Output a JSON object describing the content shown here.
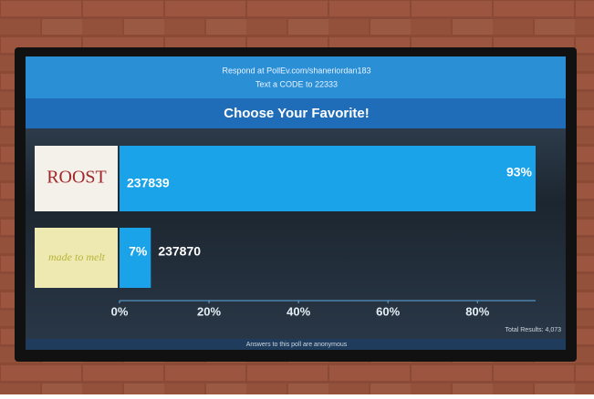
{
  "header": {
    "respond": "Respond at PollEv.com/shaneriordan183",
    "text_code": "Text a CODE to 22333"
  },
  "chart_data": {
    "type": "bar",
    "orientation": "horizontal",
    "title": "Choose Your Favorite!",
    "categories": [
      "ROOST",
      "made to melt"
    ],
    "codes": [
      "237839",
      "237870"
    ],
    "values": [
      93,
      7
    ],
    "value_labels": [
      "93%",
      "7%"
    ],
    "color": "#1aa3e8",
    "xlim": [
      0,
      93
    ],
    "xticks": [
      {
        "value": 0,
        "label": "0%"
      },
      {
        "value": 20,
        "label": "20%"
      },
      {
        "value": 40,
        "label": "40%"
      },
      {
        "value": 60,
        "label": "60%"
      },
      {
        "value": 80,
        "label": "80%"
      }
    ],
    "total": "Total Results: 4,073"
  },
  "footer": "Answers to this poll are anonymous"
}
